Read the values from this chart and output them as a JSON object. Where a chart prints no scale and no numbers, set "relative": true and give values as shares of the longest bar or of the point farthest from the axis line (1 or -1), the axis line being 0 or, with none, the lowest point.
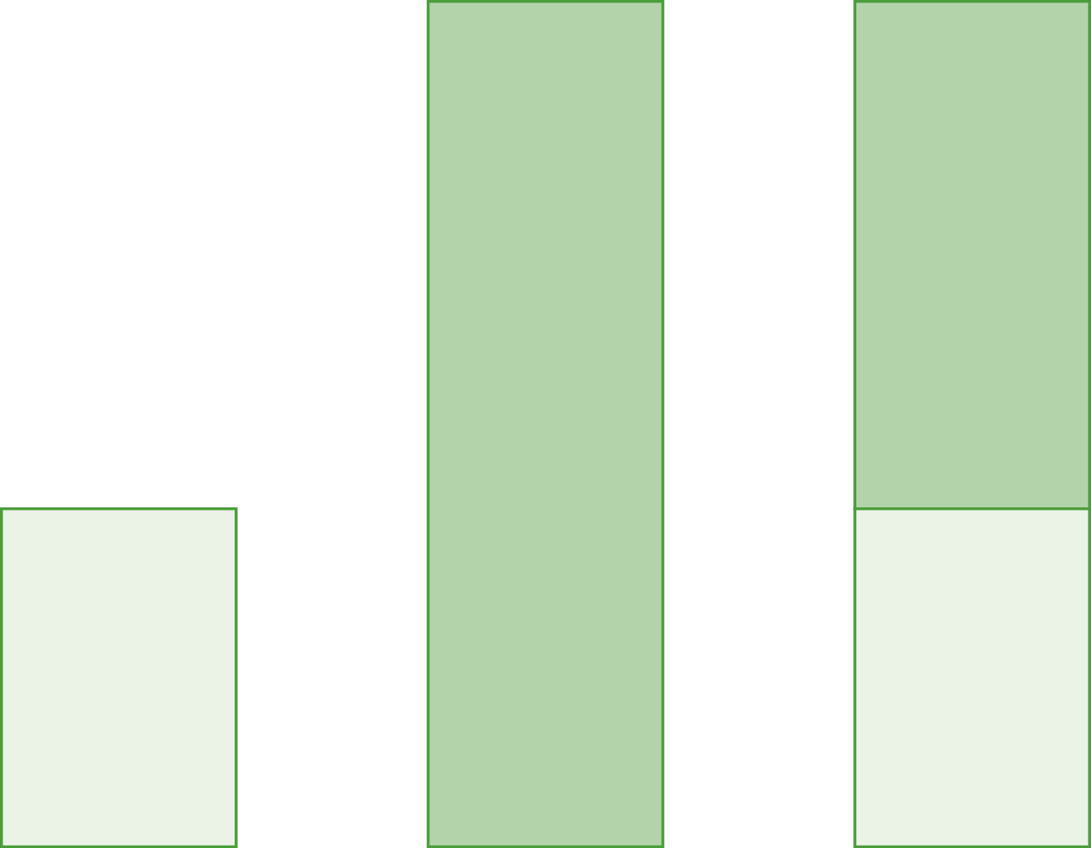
{
  "chart_data": {
    "type": "bar",
    "stacked": true,
    "relative": true,
    "categories": [
      null,
      null,
      null
    ],
    "series": [
      {
        "color": "#ebf2e6",
        "values": [
          0.4,
          0,
          0.4
        ]
      },
      {
        "color": "#b3d3aa",
        "values": [
          0,
          1,
          0.6
        ]
      }
    ]
  }
}
